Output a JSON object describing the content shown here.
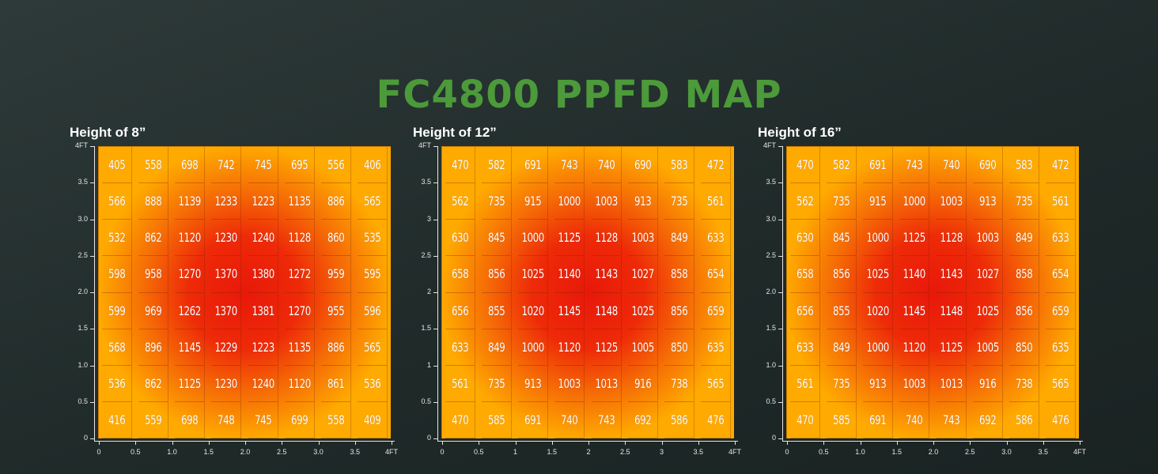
{
  "title": "FC4800 PPFD MAP",
  "colors": {
    "title": "#4c9a3a",
    "low": "#ffaa00",
    "high": "#e8180a"
  },
  "chart_data": [
    {
      "type": "heatmap",
      "title": "Height of 8”",
      "x_ticks": [
        "0",
        "0.5",
        "1.0",
        "1.5",
        "2.0",
        "2.5",
        "3.0",
        "3.5",
        "4FT"
      ],
      "y_ticks": [
        "0",
        "0.5",
        "1.0",
        "1.5",
        "2.0",
        "2.5",
        "3.0",
        "3.5",
        "4FT"
      ],
      "xlim": [
        0,
        4
      ],
      "ylim": [
        0,
        4
      ],
      "rows": [
        [
          405,
          558,
          698,
          742,
          745,
          695,
          556,
          406
        ],
        [
          566,
          888,
          1139,
          1233,
          1223,
          1135,
          886,
          565
        ],
        [
          532,
          862,
          1120,
          1230,
          1240,
          1128,
          860,
          535
        ],
        [
          598,
          958,
          1270,
          1370,
          1380,
          1272,
          959,
          595
        ],
        [
          599,
          969,
          1262,
          1370,
          1381,
          1270,
          955,
          596
        ],
        [
          568,
          896,
          1145,
          1229,
          1223,
          1135,
          886,
          565
        ],
        [
          536,
          862,
          1125,
          1230,
          1240,
          1120,
          861,
          536
        ],
        [
          416,
          559,
          698,
          748,
          745,
          699,
          558,
          409
        ]
      ]
    },
    {
      "type": "heatmap",
      "title": "Height of 12”",
      "x_ticks": [
        "0",
        "0.5",
        "1",
        "1.5",
        "2",
        "2.5",
        "3",
        "3.5",
        "4FT"
      ],
      "y_ticks": [
        "0",
        "0.5",
        "1",
        "1.5",
        "2",
        "2.5",
        "3",
        "3.5",
        "4FT"
      ],
      "xlim": [
        0,
        4
      ],
      "ylim": [
        0,
        4
      ],
      "rows": [
        [
          470,
          582,
          691,
          743,
          740,
          690,
          583,
          472
        ],
        [
          562,
          735,
          915,
          1000,
          1003,
          913,
          735,
          561
        ],
        [
          630,
          845,
          1000,
          1125,
          1128,
          1003,
          849,
          633
        ],
        [
          658,
          856,
          1025,
          1140,
          1143,
          1027,
          858,
          654
        ],
        [
          656,
          855,
          1020,
          1145,
          1148,
          1025,
          856,
          659
        ],
        [
          633,
          849,
          1000,
          1120,
          1125,
          1005,
          850,
          635
        ],
        [
          561,
          735,
          913,
          1003,
          1013,
          916,
          738,
          565
        ],
        [
          470,
          585,
          691,
          740,
          743,
          692,
          586,
          476
        ]
      ]
    },
    {
      "type": "heatmap",
      "title": "Height of 16”",
      "x_ticks": [
        "0",
        "0.5",
        "1.0",
        "1.5",
        "2.0",
        "2.5",
        "3.0",
        "3.5",
        "4FT"
      ],
      "y_ticks": [
        "0",
        "0.5",
        "1.0",
        "1.5",
        "2.0",
        "2.5",
        "3.0",
        "3.5",
        "4FT"
      ],
      "xlim": [
        0,
        4
      ],
      "ylim": [
        0,
        4
      ],
      "rows": [
        [
          470,
          582,
          691,
          743,
          740,
          690,
          583,
          472
        ],
        [
          562,
          735,
          915,
          1000,
          1003,
          913,
          735,
          561
        ],
        [
          630,
          845,
          1000,
          1125,
          1128,
          1003,
          849,
          633
        ],
        [
          658,
          856,
          1025,
          1140,
          1143,
          1027,
          858,
          654
        ],
        [
          656,
          855,
          1020,
          1145,
          1148,
          1025,
          856,
          659
        ],
        [
          633,
          849,
          1000,
          1120,
          1125,
          1005,
          850,
          635
        ],
        [
          561,
          735,
          913,
          1003,
          1013,
          916,
          738,
          565
        ],
        [
          470,
          585,
          691,
          740,
          743,
          692,
          586,
          476
        ]
      ]
    }
  ]
}
